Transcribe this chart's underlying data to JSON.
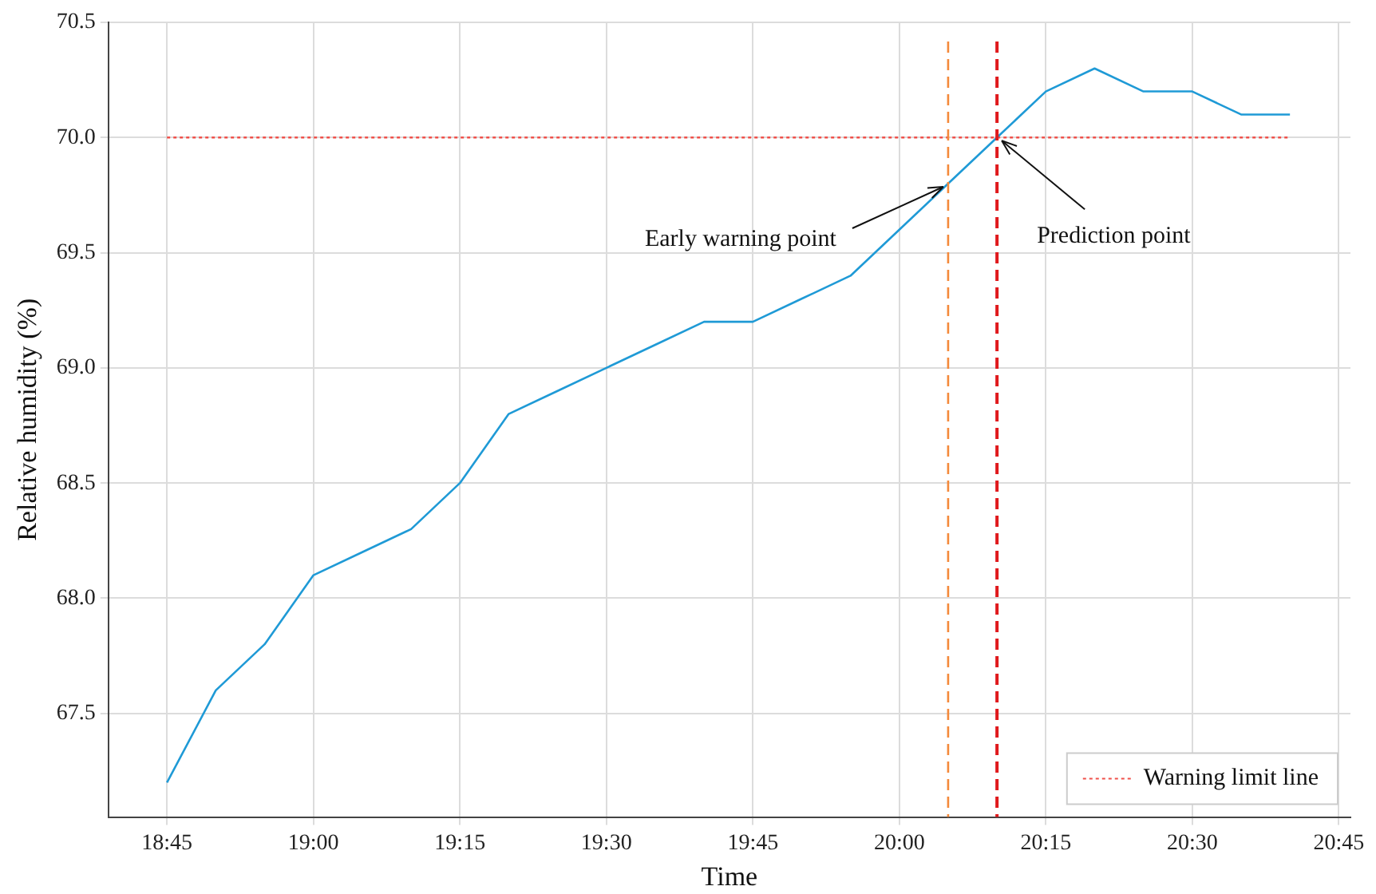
{
  "chart_data": {
    "type": "line",
    "xlabel": "Time",
    "ylabel": "Relative humidity (%)",
    "xlim": [
      18.65,
      20.77
    ],
    "xticks": [
      {
        "value": 18.75,
        "label": "18:45"
      },
      {
        "value": 19,
        "label": "19:00"
      },
      {
        "value": 19.25,
        "label": "19:15"
      },
      {
        "value": 19.5,
        "label": "19:30"
      },
      {
        "value": 19.75,
        "label": "19:45"
      },
      {
        "value": 20,
        "label": "20:00"
      },
      {
        "value": 20.25,
        "label": "20:15"
      },
      {
        "value": 20.5,
        "label": "20:30"
      },
      {
        "value": 20.75,
        "label": "20:45"
      }
    ],
    "ylim": [
      67.05,
      70.5
    ],
    "yticks": [
      67.5,
      {
        "value": 68,
        "label": "68.0"
      },
      68.5,
      {
        "value": 69,
        "label": "69.0"
      },
      69.5,
      {
        "value": 70,
        "label": "70.0"
      },
      70.5
    ],
    "x": [
      18.75,
      18.8333,
      18.9167,
      19,
      19.0833,
      19.1667,
      19.25,
      19.3333,
      19.4167,
      19.5,
      19.5833,
      19.6667,
      19.75,
      19.8333,
      19.9167,
      20,
      20.0833,
      20.1667,
      20.25,
      20.3333,
      20.4167,
      20.5,
      20.5833,
      20.6667
    ],
    "series": [
      {
        "color": "#1f9ad6",
        "values": [
          67.2,
          67.6,
          67.8,
          68.1,
          68.2,
          68.3,
          68.5,
          68.8,
          68.9,
          69.0,
          69.1,
          69.2,
          69.2,
          69.3,
          69.4,
          69.6,
          69.8,
          70.0,
          70.2,
          70.3,
          70.2,
          70.2,
          70.1,
          70.1
        ]
      },
      {
        "name": "Warning limit line",
        "color": "#f0504a",
        "x": [
          18.75,
          20.6667
        ],
        "values": [
          70.0,
          70.0
        ],
        "line_style": "dotted"
      }
    ],
    "ref_lines": [
      {
        "axis": "x",
        "value": 20.0833,
        "color": "#f4893a",
        "line_style": "dashed"
      },
      {
        "axis": "x",
        "value": 20.1667,
        "color": "#e0191c",
        "line_style": "dashed"
      }
    ],
    "annotations": [
      {
        "text": "Early warning point",
        "x": 20.0833,
        "y": 69.8
      },
      {
        "text": "Prediction point",
        "x": 20.1667,
        "y": 70.0
      }
    ],
    "grid": true,
    "legend": "bottom right",
    "marker": "none",
    "line_style": "solid"
  }
}
